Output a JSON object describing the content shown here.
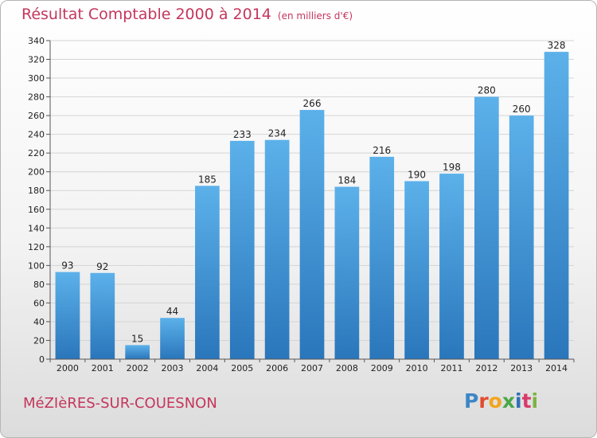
{
  "title": "Résultat Comptable 2000 à 2014",
  "unit": "(en milliers d'€)",
  "town": "MéZIèRES-SUR-COUESNON",
  "logo": {
    "letters": [
      "P",
      "r",
      "o",
      "x",
      "i",
      "t",
      "i"
    ],
    "colors": [
      "#3d86c6",
      "#e34b2e",
      "#f2a51d",
      "#4aa84a",
      "#2f6fb5",
      "#d93b6b",
      "#7cb342"
    ]
  },
  "colors": {
    "accent": "#c4365c",
    "bar_light": "#5aafe8",
    "bar_dark": "#2b78bd"
  },
  "chart_data": {
    "type": "bar",
    "title": "Résultat Comptable 2000 à 2014",
    "xlabel": "",
    "ylabel": "",
    "categories": [
      "2000",
      "2001",
      "2002",
      "2003",
      "2004",
      "2005",
      "2006",
      "2007",
      "2008",
      "2009",
      "2010",
      "2011",
      "2012",
      "2013",
      "2014"
    ],
    "values": [
      93,
      92,
      15,
      44,
      185,
      233,
      234,
      266,
      184,
      216,
      190,
      198,
      280,
      260,
      328
    ],
    "ylim": [
      0,
      340
    ],
    "yticks": [
      0,
      20,
      40,
      60,
      80,
      100,
      120,
      140,
      160,
      180,
      200,
      220,
      240,
      260,
      280,
      300,
      320,
      340
    ],
    "grid": true,
    "legend": "none"
  }
}
